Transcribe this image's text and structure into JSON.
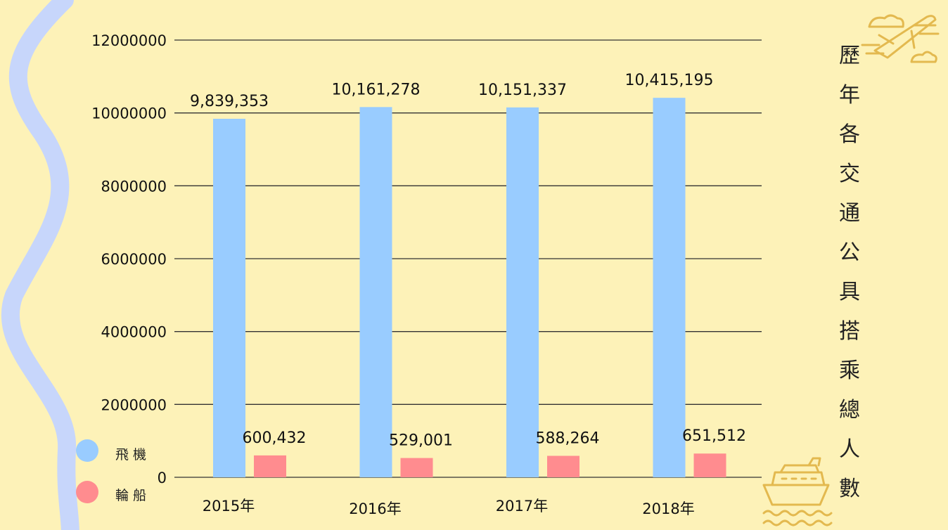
{
  "title_chars": [
    "歷",
    "年",
    "各",
    "交",
    "通",
    "公",
    "具",
    "搭",
    "乘",
    "總",
    "人",
    "數"
  ],
  "colors": {
    "background": "#fdf2b8",
    "airplane": "#99ccff",
    "ship": "#ff8c8f",
    "wave": "#c7d6fb",
    "icon": "#e3b94f",
    "gridline": "#333333"
  },
  "icons": [
    "airplane-cloud-icon",
    "ship-icon"
  ],
  "chart_data": {
    "type": "bar",
    "title": "歷年各交通公具搭乘總人數",
    "categories": [
      "2015年",
      "2016年",
      "2017年",
      "2018年"
    ],
    "series": [
      {
        "name": "飛機",
        "values": [
          9839353,
          10161278,
          10151337,
          10415195
        ],
        "labels": [
          "9,839,353",
          "10,161,278",
          "10,151,337",
          "10,415,195"
        ]
      },
      {
        "name": "輪船",
        "values": [
          600432,
          529001,
          588264,
          651512
        ],
        "labels": [
          "600,432",
          "529,001",
          "588,264",
          "651,512"
        ]
      }
    ],
    "ylim": [
      0,
      12000000
    ],
    "yticks": [
      0,
      2000000,
      4000000,
      6000000,
      8000000,
      10000000,
      12000000
    ],
    "ytick_labels": [
      "0",
      "2000000",
      "4000000",
      "6000000",
      "8000000",
      "10000000",
      "12000000"
    ],
    "legend": "bottom-left",
    "grid": true
  }
}
